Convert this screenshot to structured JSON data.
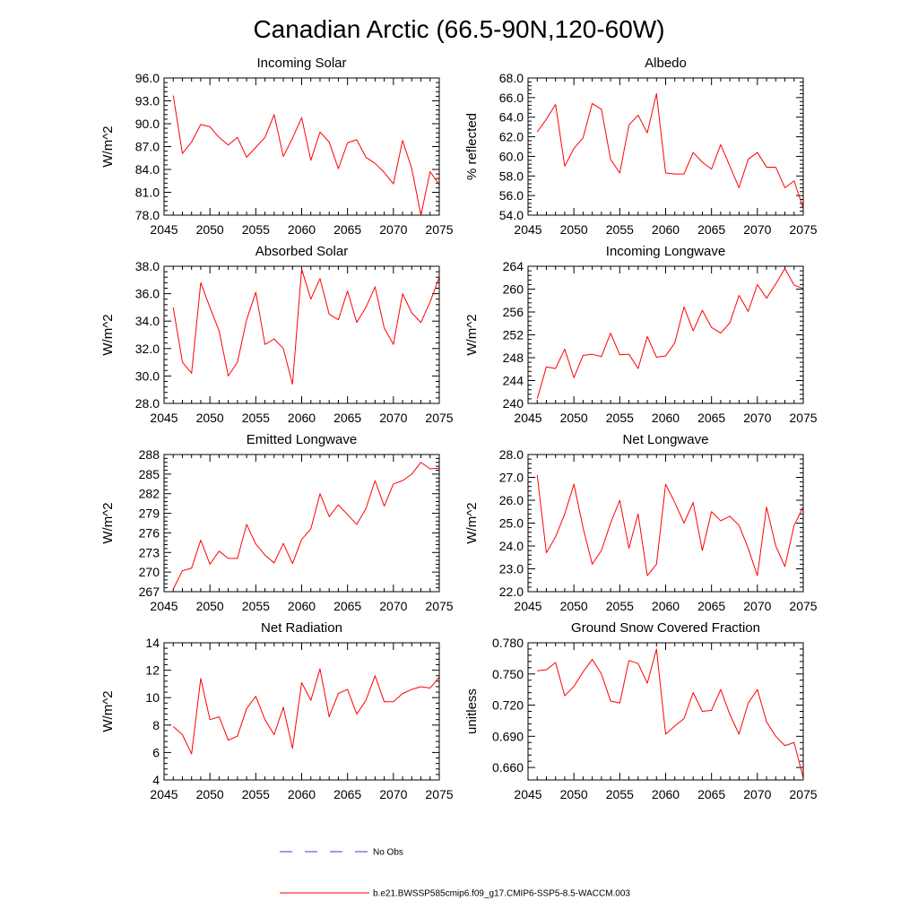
{
  "figure": {
    "title": "Canadian Arctic (66.5-90N,120-60W)",
    "legend": [
      {
        "label": "No Obs",
        "color": "#3a3ad0",
        "dashed": true
      },
      {
        "label": "b.e21.BWSSP585cmip6.f09_g17.CMIP6-SSP5-8.5-WACCM.003",
        "color": "#ff0000",
        "dashed": false
      }
    ]
  },
  "chart_data": [
    {
      "type": "line",
      "title": "Incoming Solar",
      "xlabel": "",
      "ylabel": "W/m^2",
      "xlim": [
        2045,
        2075
      ],
      "ylim": [
        78,
        96
      ],
      "xticks": [
        2045,
        2050,
        2055,
        2060,
        2065,
        2070,
        2075
      ],
      "xtick_labels": [
        "2045",
        "2050",
        "2055",
        "2060",
        "2065",
        "2070",
        "2075"
      ],
      "yticks": [
        78,
        81,
        84,
        87,
        90,
        93,
        96
      ],
      "ytick_labels": [
        "78.0",
        "81.0",
        "84.0",
        "87.0",
        "90.0",
        "93.0",
        "96.0"
      ],
      "x": [
        2046,
        2047,
        2048,
        2049,
        2050,
        2051,
        2052,
        2053,
        2054,
        2055,
        2056,
        2057,
        2058,
        2059,
        2060,
        2061,
        2062,
        2063,
        2064,
        2065,
        2066,
        2067,
        2068,
        2069,
        2070,
        2071,
        2072,
        2073,
        2074,
        2075
      ],
      "series": [
        {
          "name": "b.e21.BWSSP585cmip6.f09_g17.CMIP6-SSP5-8.5-WACCM.003",
          "color": "#ff0000",
          "values": [
            93.7,
            86.1,
            87.6,
            89.9,
            89.6,
            88.2,
            87.2,
            88.2,
            85.6,
            86.9,
            88.2,
            91.2,
            85.7,
            88.1,
            90.8,
            85.2,
            88.9,
            87.6,
            84.1,
            87.5,
            87.9,
            85.6,
            84.8,
            83.6,
            82.1,
            87.8,
            84.1,
            78.0,
            83.7,
            82.0
          ]
        }
      ]
    },
    {
      "type": "line",
      "title": "Albedo",
      "xlabel": "",
      "ylabel": "% reflected",
      "xlim": [
        2045,
        2075
      ],
      "ylim": [
        54,
        68
      ],
      "xticks": [
        2045,
        2050,
        2055,
        2060,
        2065,
        2070,
        2075
      ],
      "xtick_labels": [
        "2045",
        "2050",
        "2055",
        "2060",
        "2065",
        "2070",
        "2075"
      ],
      "yticks": [
        54,
        56,
        58,
        60,
        62,
        64,
        66,
        68
      ],
      "ytick_labels": [
        "54.0",
        "56.0",
        "58.0",
        "60.0",
        "62.0",
        "64.0",
        "66.0",
        "68.0"
      ],
      "x": [
        2046,
        2047,
        2048,
        2049,
        2050,
        2051,
        2052,
        2053,
        2054,
        2055,
        2056,
        2057,
        2058,
        2059,
        2060,
        2061,
        2062,
        2063,
        2064,
        2065,
        2066,
        2067,
        2068,
        2069,
        2070,
        2071,
        2072,
        2073,
        2074,
        2075
      ],
      "series": [
        {
          "name": "b.e21.BWSSP585cmip6.f09_g17.CMIP6-SSP5-8.5-WACCM.003",
          "color": "#ff0000",
          "values": [
            62.5,
            63.8,
            65.3,
            59.0,
            60.8,
            61.9,
            65.4,
            64.8,
            59.7,
            58.3,
            63.2,
            64.2,
            62.4,
            66.4,
            58.3,
            58.2,
            58.2,
            60.4,
            59.4,
            58.7,
            61.2,
            59.0,
            56.8,
            59.7,
            60.4,
            58.9,
            58.9,
            56.8,
            57.5,
            54.7
          ]
        }
      ]
    },
    {
      "type": "line",
      "title": "Absorbed Solar",
      "xlabel": "",
      "ylabel": "W/m^2",
      "xlim": [
        2045,
        2075
      ],
      "ylim": [
        28,
        38
      ],
      "xticks": [
        2045,
        2050,
        2055,
        2060,
        2065,
        2070,
        2075
      ],
      "xtick_labels": [
        "2045",
        "2050",
        "2055",
        "2060",
        "2065",
        "2070",
        "2075"
      ],
      "yticks": [
        28,
        30,
        32,
        34,
        36,
        38
      ],
      "ytick_labels": [
        "28.0",
        "30.0",
        "32.0",
        "34.0",
        "36.0",
        "38.0"
      ],
      "x": [
        2046,
        2047,
        2048,
        2049,
        2050,
        2051,
        2052,
        2053,
        2054,
        2055,
        2056,
        2057,
        2058,
        2059,
        2060,
        2061,
        2062,
        2063,
        2064,
        2065,
        2066,
        2067,
        2068,
        2069,
        2070,
        2071,
        2072,
        2073,
        2074,
        2075
      ],
      "series": [
        {
          "name": "b.e21.BWSSP585cmip6.f09_g17.CMIP6-SSP5-8.5-WACCM.003",
          "color": "#ff0000",
          "values": [
            35.0,
            31.0,
            30.2,
            36.8,
            35.0,
            33.3,
            30.0,
            31.0,
            34.1,
            36.1,
            32.3,
            32.7,
            32.0,
            29.4,
            37.8,
            35.6,
            37.1,
            34.5,
            34.1,
            36.2,
            33.9,
            35.0,
            36.5,
            33.5,
            32.3,
            36.0,
            34.6,
            33.9,
            35.4,
            37.2
          ]
        }
      ]
    },
    {
      "type": "line",
      "title": "Incoming Longwave",
      "xlabel": "",
      "ylabel": "W/m^2",
      "xlim": [
        2045,
        2075
      ],
      "ylim": [
        240,
        264
      ],
      "xticks": [
        2045,
        2050,
        2055,
        2060,
        2065,
        2070,
        2075
      ],
      "xtick_labels": [
        "2045",
        "2050",
        "2055",
        "2060",
        "2065",
        "2070",
        "2075"
      ],
      "yticks": [
        240,
        244,
        248,
        252,
        256,
        260,
        264
      ],
      "ytick_labels": [
        "240",
        "244",
        "248",
        "252",
        "256",
        "260",
        "264"
      ],
      "x": [
        2046,
        2047,
        2048,
        2049,
        2050,
        2051,
        2052,
        2053,
        2054,
        2055,
        2056,
        2057,
        2058,
        2059,
        2060,
        2061,
        2062,
        2063,
        2064,
        2065,
        2066,
        2067,
        2068,
        2069,
        2070,
        2071,
        2072,
        2073,
        2074,
        2075
      ],
      "series": [
        {
          "name": "b.e21.BWSSP585cmip6.f09_g17.CMIP6-SSP5-8.5-WACCM.003",
          "color": "#ff0000",
          "values": [
            240.8,
            246.4,
            246.1,
            249.5,
            244.5,
            248.4,
            248.6,
            248.2,
            252.3,
            248.5,
            248.6,
            246.1,
            251.7,
            248.1,
            248.3,
            250.6,
            256.9,
            252.7,
            256.3,
            253.3,
            252.3,
            254.1,
            258.9,
            256.1,
            260.8,
            258.4,
            260.9,
            263.6,
            260.7,
            260.1
          ]
        }
      ]
    },
    {
      "type": "line",
      "title": "Emitted Longwave",
      "xlabel": "",
      "ylabel": "W/m^2",
      "xlim": [
        2045,
        2075
      ],
      "ylim": [
        267,
        288
      ],
      "xticks": [
        2045,
        2050,
        2055,
        2060,
        2065,
        2070,
        2075
      ],
      "xtick_labels": [
        "2045",
        "2050",
        "2055",
        "2060",
        "2065",
        "2070",
        "2075"
      ],
      "yticks": [
        267,
        270,
        273,
        276,
        279,
        282,
        285,
        288
      ],
      "ytick_labels": [
        "267",
        "270",
        "273",
        "276",
        "279",
        "282",
        "285",
        "288"
      ],
      "x": [
        2046,
        2047,
        2048,
        2049,
        2050,
        2051,
        2052,
        2053,
        2054,
        2055,
        2056,
        2057,
        2058,
        2059,
        2060,
        2061,
        2062,
        2063,
        2064,
        2065,
        2066,
        2067,
        2068,
        2069,
        2070,
        2071,
        2072,
        2073,
        2074,
        2075
      ],
      "series": [
        {
          "name": "b.e21.BWSSP585cmip6.f09_g17.CMIP6-SSP5-8.5-WACCM.003",
          "color": "#ff0000",
          "values": [
            267.4,
            270.2,
            270.6,
            274.9,
            271.2,
            273.2,
            272.1,
            272.1,
            277.3,
            274.3,
            272.6,
            271.4,
            274.4,
            271.3,
            275.0,
            276.6,
            282.0,
            278.5,
            280.3,
            278.8,
            277.3,
            279.7,
            284.0,
            280.1,
            283.5,
            284.0,
            285.0,
            286.8,
            285.8,
            285.9
          ]
        }
      ]
    },
    {
      "type": "line",
      "title": "Net Longwave",
      "xlabel": "",
      "ylabel": "W/m^2",
      "xlim": [
        2045,
        2075
      ],
      "ylim": [
        22,
        28
      ],
      "xticks": [
        2045,
        2050,
        2055,
        2060,
        2065,
        2070,
        2075
      ],
      "xtick_labels": [
        "2045",
        "2050",
        "2055",
        "2060",
        "2065",
        "2070",
        "2075"
      ],
      "yticks": [
        22,
        23,
        24,
        25,
        26,
        27,
        28
      ],
      "ytick_labels": [
        "22.0",
        "23.0",
        "24.0",
        "25.0",
        "26.0",
        "27.0",
        "28.0"
      ],
      "x": [
        2046,
        2047,
        2048,
        2049,
        2050,
        2051,
        2052,
        2053,
        2054,
        2055,
        2056,
        2057,
        2058,
        2059,
        2060,
        2061,
        2062,
        2063,
        2064,
        2065,
        2066,
        2067,
        2068,
        2069,
        2070,
        2071,
        2072,
        2073,
        2074,
        2075
      ],
      "series": [
        {
          "name": "b.e21.BWSSP585cmip6.f09_g17.CMIP6-SSP5-8.5-WACCM.003",
          "color": "#ff0000",
          "values": [
            27.1,
            23.7,
            24.4,
            25.4,
            26.7,
            24.8,
            23.2,
            23.8,
            25.0,
            26.0,
            23.9,
            25.4,
            22.7,
            23.2,
            26.7,
            25.9,
            25.0,
            25.9,
            23.8,
            25.5,
            25.1,
            25.3,
            24.9,
            23.9,
            22.7,
            25.7,
            24.0,
            23.1,
            24.9,
            25.7
          ]
        }
      ]
    },
    {
      "type": "line",
      "title": "Net Radiation",
      "xlabel": "",
      "ylabel": "W/m^2",
      "xlim": [
        2045,
        2075
      ],
      "ylim": [
        4,
        14
      ],
      "xticks": [
        2045,
        2050,
        2055,
        2060,
        2065,
        2070,
        2075
      ],
      "xtick_labels": [
        "2045",
        "2050",
        "2055",
        "2060",
        "2065",
        "2070",
        "2075"
      ],
      "yticks": [
        4,
        6,
        8,
        10,
        12,
        14
      ],
      "ytick_labels": [
        "4",
        "6",
        "8",
        "10",
        "12",
        "14"
      ],
      "x": [
        2046,
        2047,
        2048,
        2049,
        2050,
        2051,
        2052,
        2053,
        2054,
        2055,
        2056,
        2057,
        2058,
        2059,
        2060,
        2061,
        2062,
        2063,
        2064,
        2065,
        2066,
        2067,
        2068,
        2069,
        2070,
        2071,
        2072,
        2073,
        2074,
        2075
      ],
      "series": [
        {
          "name": "b.e21.BWSSP585cmip6.f09_g17.CMIP6-SSP5-8.5-WACCM.003",
          "color": "#ff0000",
          "values": [
            7.9,
            7.3,
            5.9,
            11.4,
            8.4,
            8.6,
            6.9,
            7.2,
            9.2,
            10.1,
            8.4,
            7.3,
            9.3,
            6.3,
            11.1,
            9.8,
            12.1,
            8.6,
            10.3,
            10.6,
            8.8,
            9.8,
            11.6,
            9.7,
            9.7,
            10.3,
            10.6,
            10.8,
            10.7,
            11.5
          ]
        }
      ]
    },
    {
      "type": "line",
      "title": "Ground Snow Covered Fraction",
      "xlabel": "",
      "ylabel": "unitless",
      "xlim": [
        2045,
        2075
      ],
      "ylim": [
        0.648,
        0.78
      ],
      "xticks": [
        2045,
        2050,
        2055,
        2060,
        2065,
        2070,
        2075
      ],
      "xtick_labels": [
        "2045",
        "2050",
        "2055",
        "2060",
        "2065",
        "2070",
        "2075"
      ],
      "yticks": [
        0.66,
        0.69,
        0.72,
        0.75,
        0.78
      ],
      "ytick_labels": [
        "0.660",
        "0.690",
        "0.720",
        "0.750",
        "0.780"
      ],
      "x": [
        2046,
        2047,
        2048,
        2049,
        2050,
        2051,
        2052,
        2053,
        2054,
        2055,
        2056,
        2057,
        2058,
        2059,
        2060,
        2061,
        2062,
        2063,
        2064,
        2065,
        2066,
        2067,
        2068,
        2069,
        2070,
        2071,
        2072,
        2073,
        2074,
        2075
      ],
      "series": [
        {
          "name": "b.e21.BWSSP585cmip6.f09_g17.CMIP6-SSP5-8.5-WACCM.003",
          "color": "#ff0000",
          "values": [
            0.753,
            0.754,
            0.761,
            0.729,
            0.738,
            0.752,
            0.764,
            0.75,
            0.724,
            0.722,
            0.763,
            0.76,
            0.741,
            0.774,
            0.692,
            0.7,
            0.707,
            0.732,
            0.714,
            0.715,
            0.735,
            0.711,
            0.692,
            0.722,
            0.735,
            0.704,
            0.69,
            0.681,
            0.684,
            0.65
          ]
        }
      ]
    }
  ]
}
